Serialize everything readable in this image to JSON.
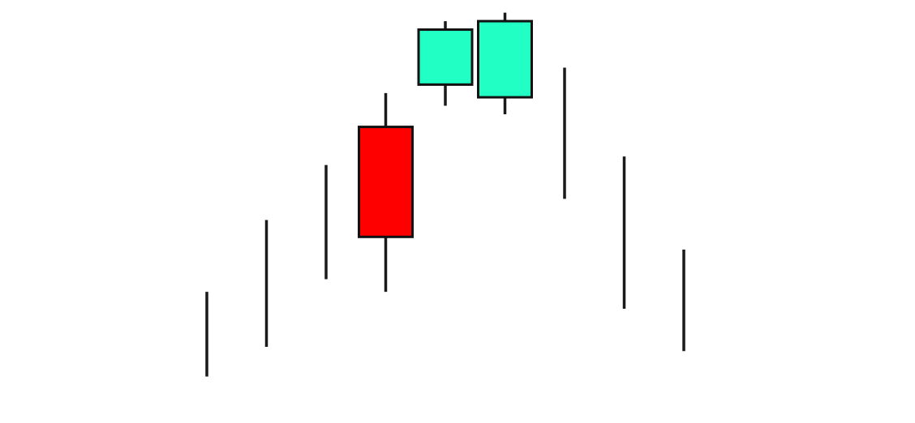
{
  "chart_data": {
    "type": "candlestick",
    "title": "",
    "xlabel": "",
    "ylabel": "",
    "ylim": [
      0,
      100
    ],
    "grid": false,
    "legend": "none",
    "colors": {
      "bullish": "#22ffc4",
      "bearish": "#ff0000",
      "outline": "#111111",
      "wick": "#1a1a1a",
      "background": "#ffffff"
    },
    "candles": [
      {
        "index": 1,
        "open": null,
        "high": 31,
        "low": 11,
        "close": null
      },
      {
        "index": 2,
        "open": null,
        "high": 48,
        "low": 18,
        "close": null
      },
      {
        "index": 3,
        "open": null,
        "high": 61,
        "low": 34,
        "close": null
      },
      {
        "index": 4,
        "open": 70,
        "high": 78,
        "low": 31,
        "close": 44
      },
      {
        "index": 5,
        "open": 80,
        "high": 95,
        "low": 75,
        "close": 93
      },
      {
        "index": 6,
        "open": 77,
        "high": 97,
        "low": 73,
        "close": 95
      },
      {
        "index": 7,
        "open": null,
        "high": 84,
        "low": 53,
        "close": null
      },
      {
        "index": 8,
        "open": null,
        "high": 63,
        "low": 27,
        "close": null
      },
      {
        "index": 9,
        "open": null,
        "high": 41,
        "low": 17,
        "close": null
      }
    ]
  }
}
